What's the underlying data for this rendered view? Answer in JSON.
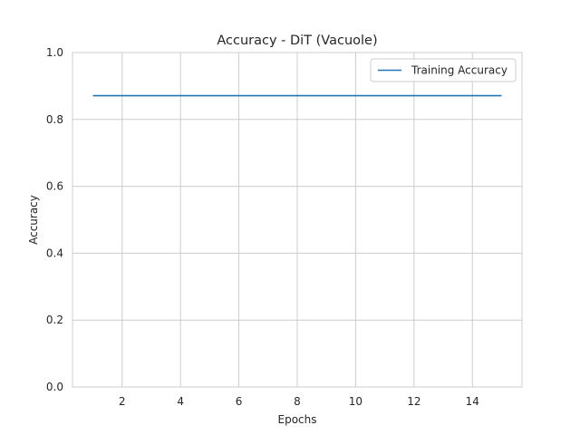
{
  "chart_data": {
    "type": "line",
    "title": "Accuracy - DiT (Vacuole)",
    "xlabel": "Epochs",
    "ylabel": "Accuracy",
    "xlim": [
      0.3,
      15.7
    ],
    "ylim": [
      0,
      1.0
    ],
    "xticks": [
      2,
      4,
      6,
      8,
      10,
      12,
      14
    ],
    "yticks": [
      0.0,
      0.2,
      0.4,
      0.6,
      0.8,
      1.0
    ],
    "grid": true,
    "legend_position": "top-right",
    "series": [
      {
        "name": "Training Accuracy",
        "color": "#1f77b4",
        "x": [
          1,
          2,
          3,
          4,
          5,
          6,
          7,
          8,
          9,
          10,
          11,
          12,
          13,
          14,
          15
        ],
        "y": [
          0.871,
          0.871,
          0.871,
          0.871,
          0.871,
          0.871,
          0.871,
          0.871,
          0.871,
          0.871,
          0.871,
          0.871,
          0.871,
          0.871,
          0.871
        ]
      }
    ]
  }
}
